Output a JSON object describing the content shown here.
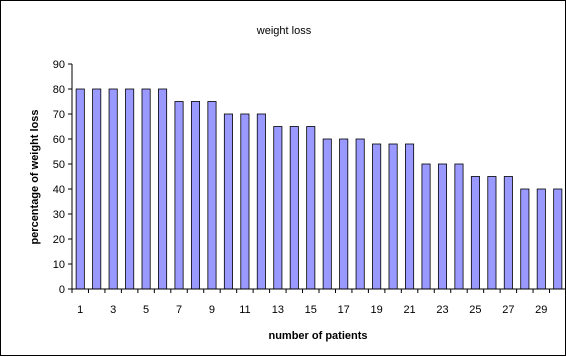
{
  "chart_data": {
    "type": "bar",
    "title": "weight loss",
    "xlabel": "number of patients",
    "ylabel": "percentage of weight loss",
    "categories": [
      "1",
      "2",
      "3",
      "4",
      "5",
      "6",
      "7",
      "8",
      "9",
      "10",
      "11",
      "12",
      "13",
      "14",
      "15",
      "16",
      "17",
      "18",
      "19",
      "20",
      "21",
      "22",
      "23",
      "24",
      "25",
      "26",
      "27",
      "28",
      "29",
      "30"
    ],
    "x_tick_labels": [
      "1",
      "3",
      "5",
      "7",
      "9",
      "11",
      "13",
      "15",
      "17",
      "19",
      "21",
      "23",
      "25",
      "27",
      "29"
    ],
    "values": [
      80,
      80,
      80,
      80,
      80,
      80,
      75,
      75,
      75,
      70,
      70,
      70,
      65,
      65,
      65,
      60,
      60,
      60,
      58,
      58,
      58,
      50,
      50,
      50,
      45,
      45,
      45,
      40,
      40,
      40
    ],
    "ylim": [
      0,
      90
    ],
    "y_ticks": [
      0,
      10,
      20,
      30,
      40,
      50,
      60,
      70,
      80,
      90
    ],
    "grid": false,
    "legend": "none",
    "colors": {
      "bar_fill": "#9999ff",
      "bar_stroke": "#000000",
      "axis": "#000000"
    }
  }
}
